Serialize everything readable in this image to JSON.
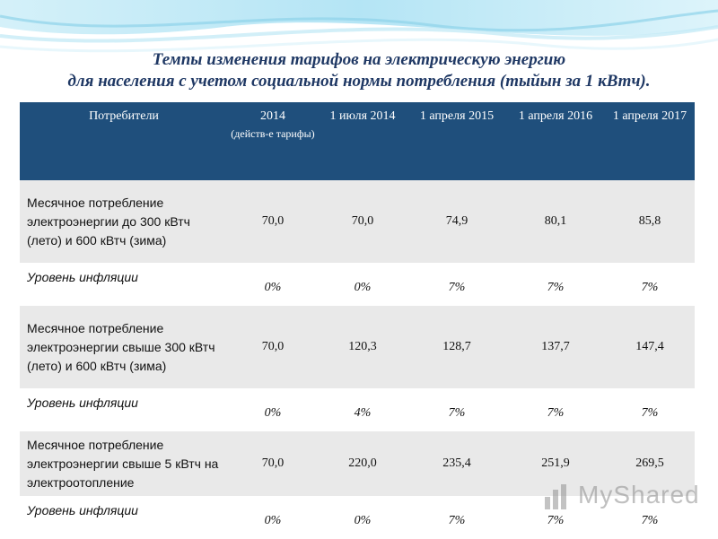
{
  "title": {
    "line1": "Темпы изменения тарифов на электрическую энергию",
    "line2": "для населения с учетом социальной нормы потребления (тыйын за 1 кВтч)."
  },
  "table": {
    "headers": [
      {
        "main": "Потребители",
        "sub": ""
      },
      {
        "main": "2014",
        "sub": "(действ-е тарифы)"
      },
      {
        "main": "1 июля 2014",
        "sub": ""
      },
      {
        "main": "1 апреля 2015",
        "sub": ""
      },
      {
        "main": "1 апреля 2016",
        "sub": ""
      },
      {
        "main": "1 апреля 2017",
        "sub": ""
      }
    ],
    "rows": [
      {
        "label": "Месячное потребление электроэнергии до 300 кВтч (лето) и 600 кВтч (зима)",
        "values": [
          "70,0",
          "70,0",
          "74,9",
          "80,1",
          "85,8"
        ]
      },
      {
        "label": "Уровень инфляции",
        "values": [
          "0%",
          "0%",
          "7%",
          "7%",
          "7%"
        ]
      },
      {
        "label": "Месячное потребление электроэнергии свыше 300 кВтч (лето) и 600 кВтч (зима)",
        "values": [
          "70,0",
          "120,3",
          "128,7",
          "137,7",
          "147,4"
        ]
      },
      {
        "label": "Уровень инфляции",
        "values": [
          "0%",
          "4%",
          "7%",
          "7%",
          "7%"
        ]
      },
      {
        "label": "Месячное потребление электроэнергии свыше 5 кВтч на электроотопление",
        "values": [
          "70,0",
          "220,0",
          "235,4",
          "251,9",
          "269,5"
        ]
      },
      {
        "label": "Уровень инфляции",
        "values": [
          "0%",
          "0%",
          "7%",
          "7%",
          "7%"
        ]
      }
    ]
  },
  "watermark": {
    "text": "MyShared"
  },
  "colors": {
    "header_bg": "#1f4f7c",
    "title": "#1f3864",
    "row_gray": "#e9e9e9"
  }
}
